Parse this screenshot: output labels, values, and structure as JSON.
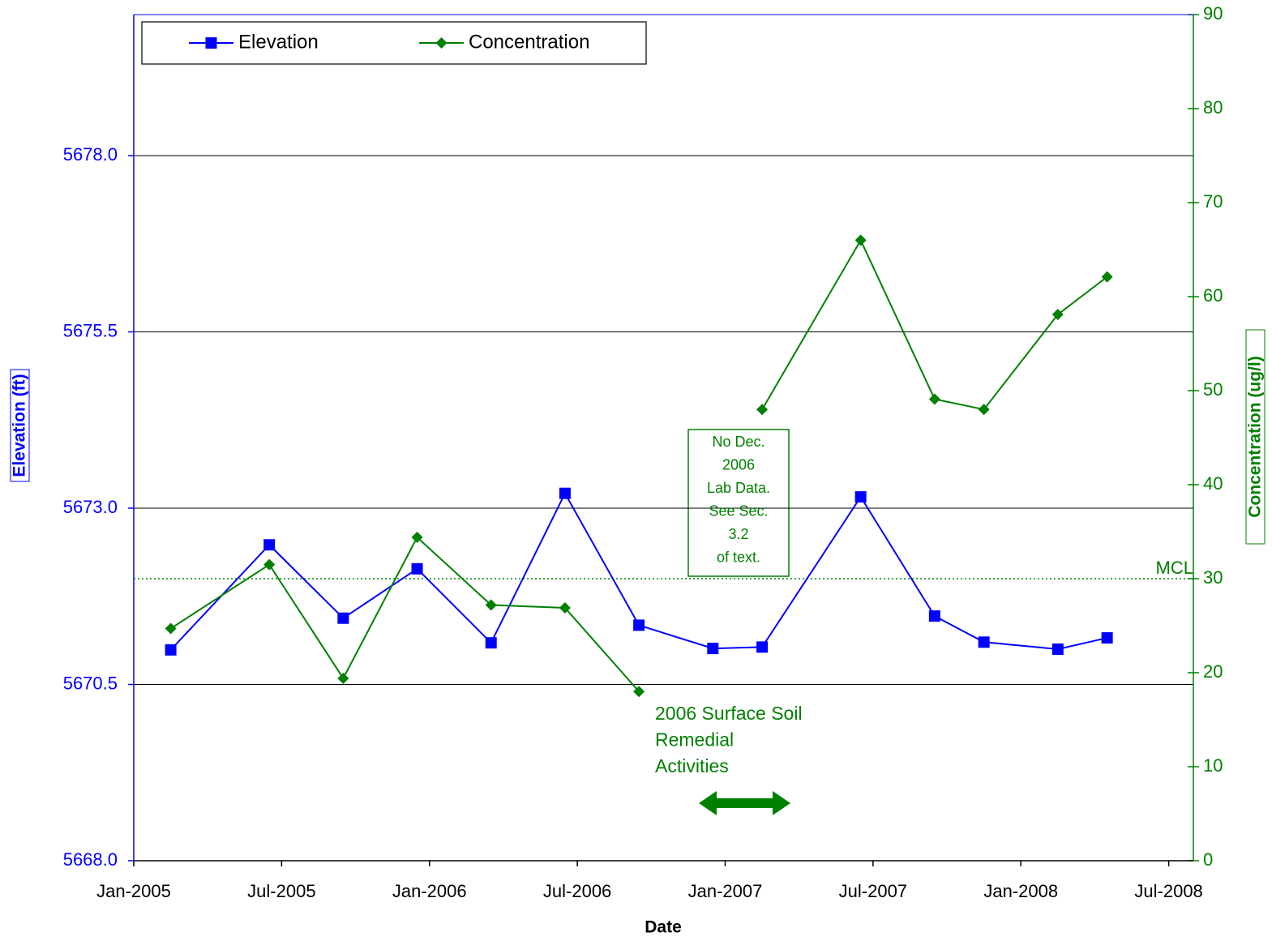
{
  "chart_data": {
    "type": "line",
    "x": [
      "Feb-2005",
      "Jun-2005",
      "Sep-2005",
      "Dec-2005",
      "Mar-2006",
      "Jun-2006",
      "Sep-2006",
      "Dec-2006",
      "Feb-2007",
      "Jun-2007",
      "Sep-2007",
      "Nov-2007",
      "Feb-2008",
      "Apr-2008"
    ],
    "series": [
      {
        "name": "Elevation",
        "color": "#0000ff",
        "marker": "square",
        "values": [
          5670.99,
          5672.48,
          5671.44,
          5672.14,
          5671.09,
          5673.21,
          5671.34,
          5671.01,
          5671.03,
          5673.16,
          5671.47,
          5671.1,
          5671.0,
          5671.16
        ]
      },
      {
        "name": "Concentration",
        "color": "#008000",
        "marker": "diamond",
        "axis": "y2",
        "values": [
          24.7,
          31.5,
          19.4,
          34.4,
          27.2,
          26.9,
          18.0,
          null,
          48.0,
          66.0,
          49.1,
          48.0,
          58.1,
          62.1
        ]
      }
    ],
    "xlim": [
      "Jan-2005",
      "Aug-2008"
    ],
    "xticks": [
      "Jan-2005",
      "Jul-2005",
      "Jan-2006",
      "Jul-2006",
      "Jan-2007",
      "Jul-2007",
      "Jan-2008",
      "Jul-2008"
    ],
    "ylim": [
      5668,
      5680
    ],
    "yticks": [
      {
        "value": 5668,
        "label": "5668.0"
      },
      {
        "value": 5670.5,
        "label": "5670.5"
      },
      {
        "value": 5673,
        "label": "5673.0"
      },
      {
        "value": 5675.5,
        "label": "5675.5"
      },
      {
        "value": 5678,
        "label": "5678.0"
      }
    ],
    "y2lim": [
      0,
      90
    ],
    "y2ticks": [
      0,
      10,
      20,
      30,
      40,
      50,
      60,
      70,
      80,
      90
    ],
    "xlabel": "Date",
    "ylabel": "Elevation (ft)",
    "y2label": "Concentration (ug/l)",
    "grid": true,
    "reference_line": {
      "label": "MCL",
      "value": 30,
      "axis": "y2",
      "color": "#008000"
    },
    "annotations": [
      {
        "lines": [
          "No Dec.",
          "2006",
          "Lab Data.",
          "See Sec.",
          "3.2",
          "of text."
        ]
      },
      {
        "lines": [
          "2006 Surface Soil",
          "Remedial",
          "Activities"
        ]
      }
    ]
  }
}
